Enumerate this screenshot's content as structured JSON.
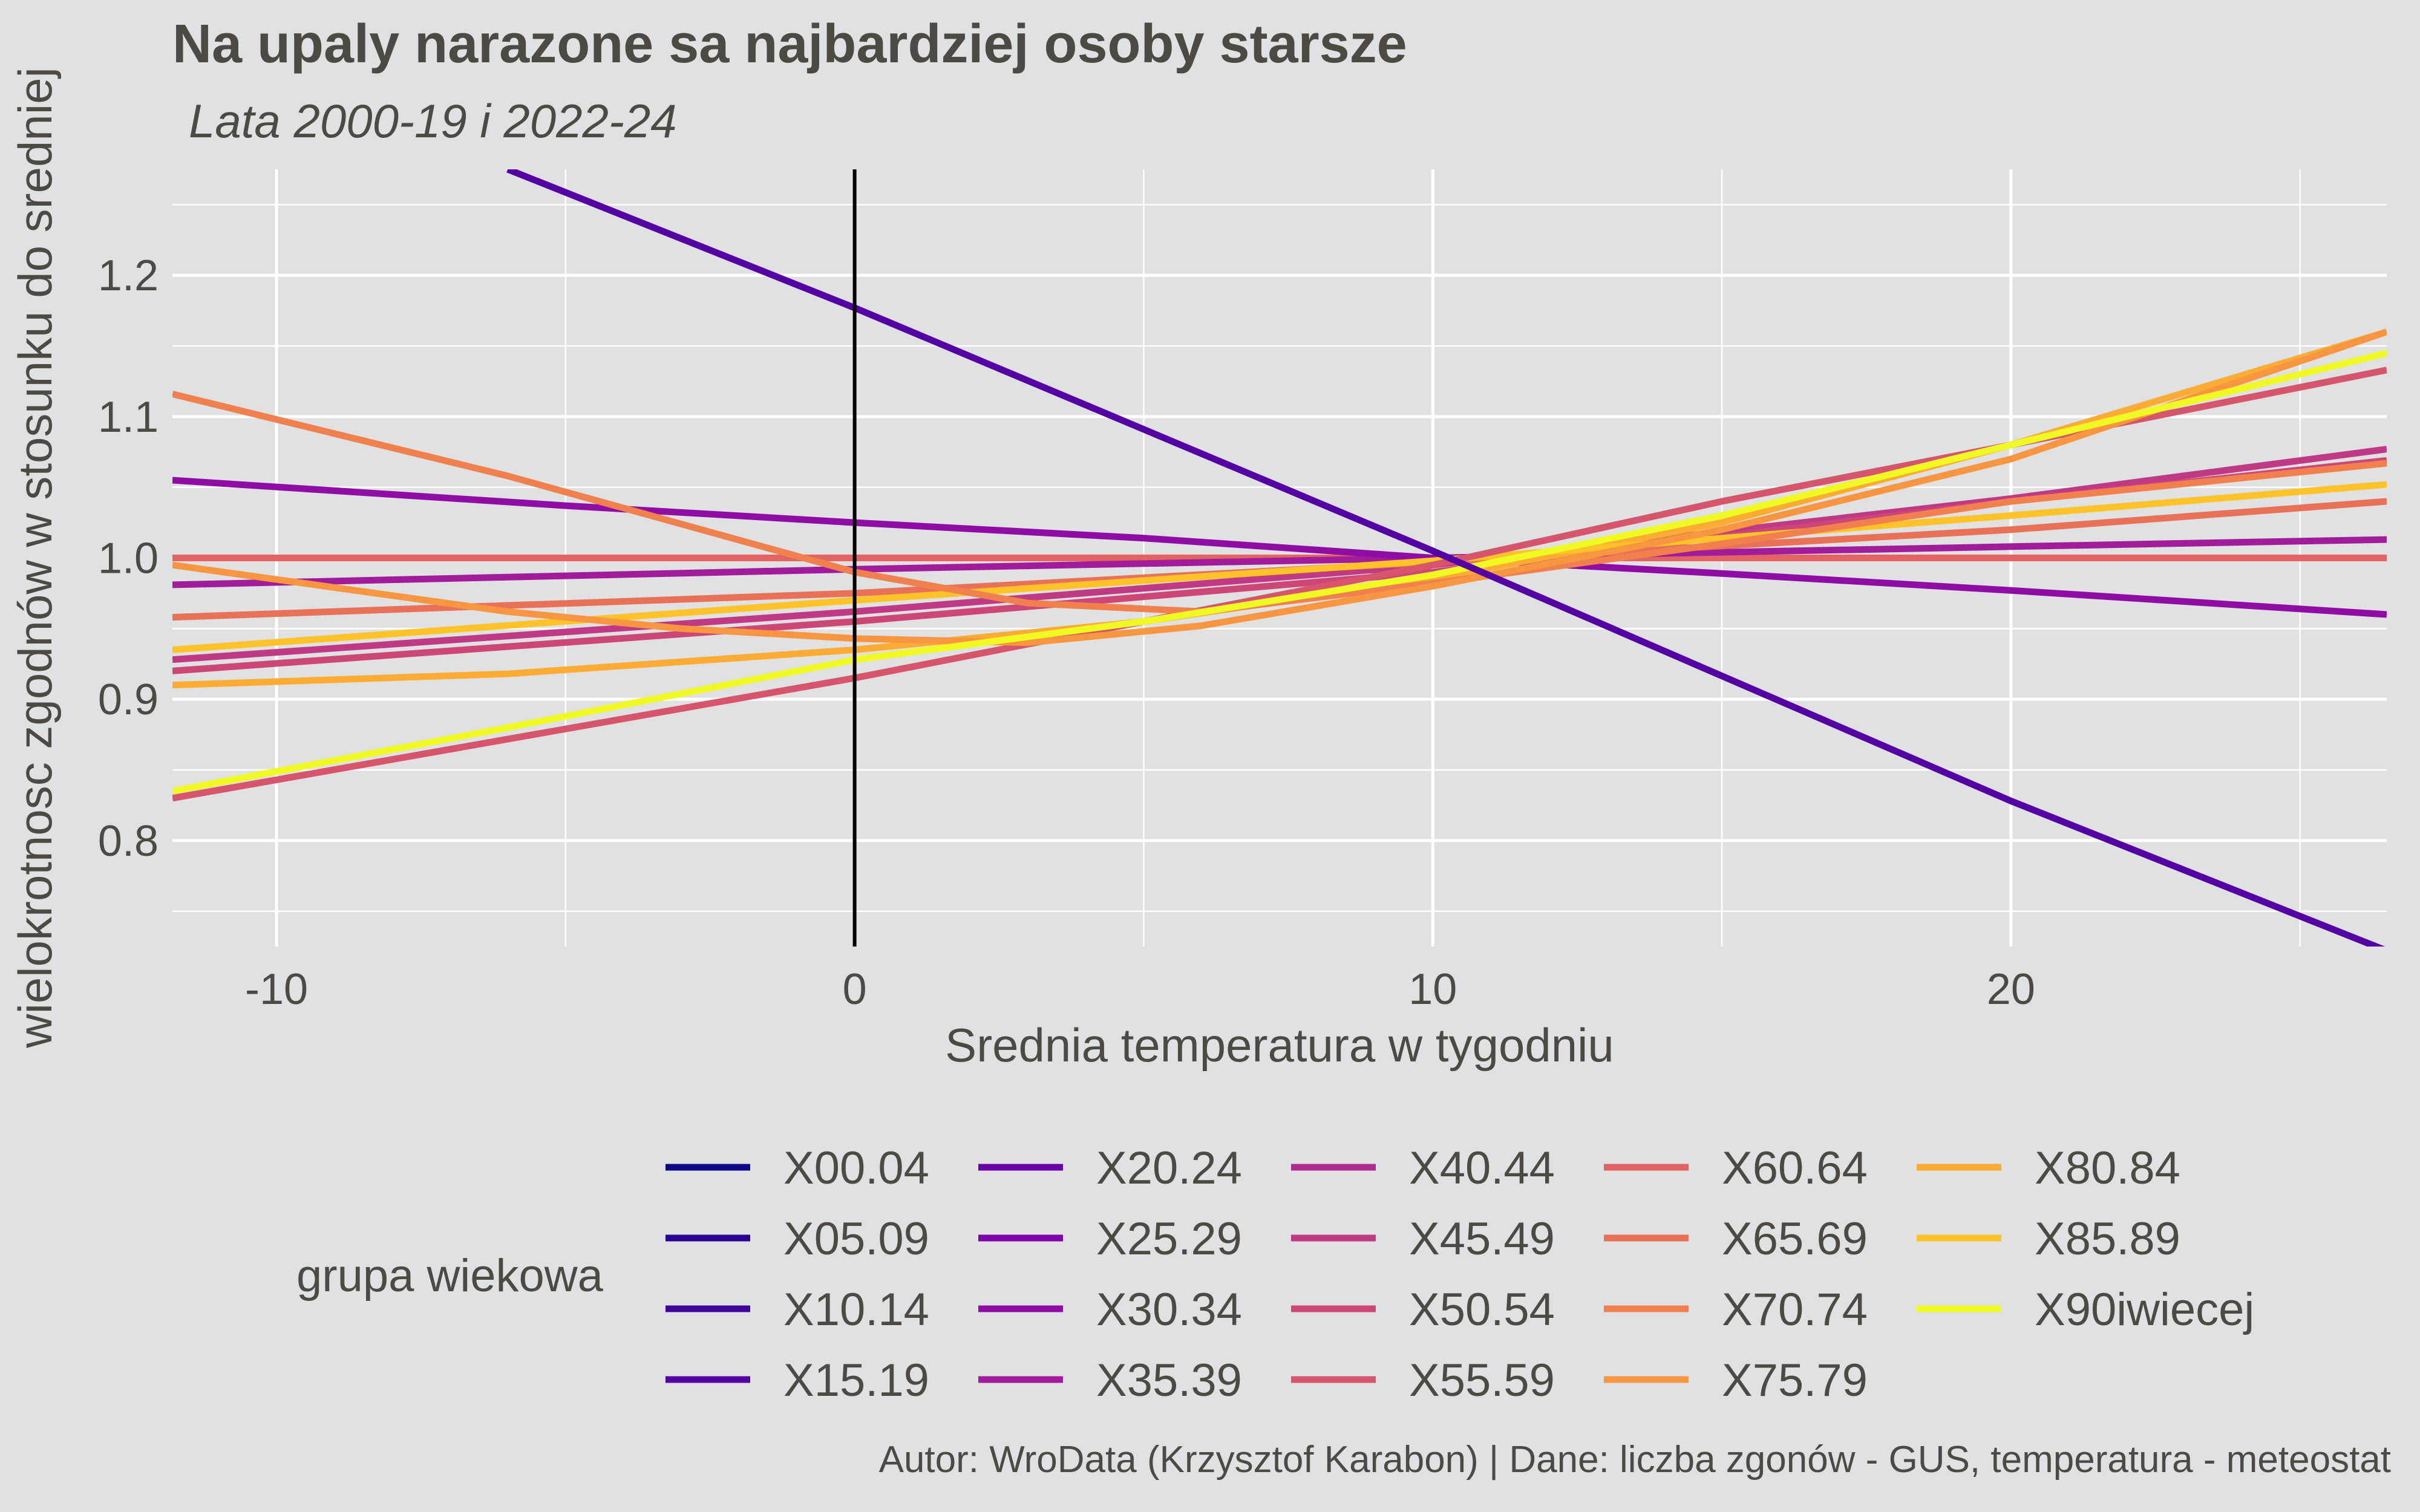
{
  "chart_data": {
    "type": "line",
    "title": "Na upaly narazone sa najbardziej osoby starsze",
    "subtitle": "Lata 2000-19 i 2022-24",
    "xlabel": "Srednia temperatura w tygodniu",
    "ylabel": "wielokrotnosc zgodnów w stosunku do sredniej",
    "xlim": [
      -11.8,
      26.5
    ],
    "ylim": [
      0.725,
      1.275
    ],
    "xticks": [
      -10,
      0,
      10,
      20
    ],
    "xtick_labels": [
      "-10",
      "0",
      "10",
      "20"
    ],
    "yticks": [
      0.8,
      0.9,
      1.0,
      1.1,
      1.2
    ],
    "ytick_labels": [
      "0.8",
      "0.9",
      "1.0",
      "1.1",
      "1.2"
    ],
    "grid": true,
    "reference_line_x": 0,
    "legend_title": "grupa wiekowa",
    "legend_position": "bottom",
    "series": [
      {
        "name": "X00.04",
        "color": "#0d0887",
        "x": [
          -11.8,
          0,
          10,
          20,
          26.5
        ],
        "y": [
          1.0,
          1.0,
          1.0,
          1.0,
          1.0
        ]
      },
      {
        "name": "X05.09",
        "color": "#2d0594",
        "x": [
          -11.8,
          0,
          10,
          20,
          26.5
        ],
        "y": [
          1.0,
          1.0,
          1.0,
          1.0,
          1.0
        ]
      },
      {
        "name": "X10.14",
        "color": "#41049d",
        "x": [
          -11.8,
          0,
          10,
          20,
          26.5
        ],
        "y": [
          1.0,
          1.0,
          1.0,
          1.0,
          1.0
        ]
      },
      {
        "name": "X15.19",
        "color": "#5402a3",
        "x": [
          -6,
          0,
          10,
          20,
          26.5
        ],
        "y": [
          1.275,
          1.177,
          1.005,
          0.828,
          0.722
        ]
      },
      {
        "name": "X20.24",
        "color": "#6a00a8",
        "x": [
          -11.8,
          0,
          10,
          20,
          26.5
        ],
        "y": [
          1.0,
          1.0,
          1.0,
          1.0,
          1.0
        ]
      },
      {
        "name": "X25.29",
        "color": "#7e03a8",
        "x": [
          -11.8,
          0,
          10,
          20,
          26.5
        ],
        "y": [
          1.0,
          1.0,
          1.0,
          1.0,
          1.0
        ]
      },
      {
        "name": "X30.34",
        "color": "#8f0da4",
        "x": [
          -11.8,
          -5,
          0,
          5,
          10,
          15,
          20,
          26.5
        ],
        "y": [
          1.055,
          1.037,
          1.025,
          1.014,
          1.0,
          0.989,
          0.977,
          0.96
        ]
      },
      {
        "name": "X35.39",
        "color": "#a11b9b",
        "x": [
          -11.8,
          0,
          10,
          20,
          26.5
        ],
        "y": [
          0.981,
          0.992,
          1.0,
          1.008,
          1.013
        ]
      },
      {
        "name": "X40.44",
        "color": "#b12a90",
        "x": [
          -11.8,
          0,
          10,
          20,
          26.5
        ],
        "y": [
          1.0,
          1.0,
          1.0,
          1.0,
          1.0
        ]
      },
      {
        "name": "X45.49",
        "color": "#bf3984",
        "x": [
          -11.8,
          0,
          10,
          20,
          26.5
        ],
        "y": [
          0.928,
          0.962,
          0.995,
          1.042,
          1.077
        ]
      },
      {
        "name": "X50.54",
        "color": "#cc4778",
        "x": [
          -11.8,
          0,
          10,
          20,
          26.5
        ],
        "y": [
          0.92,
          0.955,
          0.99,
          1.04,
          1.069
        ]
      },
      {
        "name": "X55.59",
        "color": "#d6556d",
        "x": [
          -11.8,
          0,
          5,
          10,
          15,
          20,
          26.5
        ],
        "y": [
          0.83,
          0.915,
          0.955,
          0.995,
          1.04,
          1.08,
          1.133
        ]
      },
      {
        "name": "X60.64",
        "color": "#e16462",
        "x": [
          -11.8,
          0,
          10,
          20,
          26.5
        ],
        "y": [
          1.0,
          1.0,
          1.0,
          1.0,
          1.0
        ]
      },
      {
        "name": "X65.69",
        "color": "#e97158",
        "x": [
          -11.8,
          0,
          10,
          20,
          26.5
        ],
        "y": [
          0.958,
          0.975,
          0.997,
          1.02,
          1.04
        ]
      },
      {
        "name": "X70.74",
        "color": "#f0804e",
        "x": [
          -11.8,
          -6,
          0,
          3,
          6,
          10,
          15,
          20,
          26.5
        ],
        "y": [
          1.116,
          1.058,
          0.99,
          0.968,
          0.962,
          0.982,
          1.01,
          1.04,
          1.067
        ]
      },
      {
        "name": "X75.79",
        "color": "#f89540",
        "x": [
          -11.8,
          -6,
          -3,
          0,
          3,
          6,
          10,
          15,
          20,
          26.5
        ],
        "y": [
          0.995,
          0.962,
          0.95,
          0.943,
          0.94,
          0.952,
          0.98,
          1.02,
          1.07,
          1.16
        ]
      },
      {
        "name": "X80.84",
        "color": "#fdac33",
        "x": [
          -11.8,
          -6,
          0,
          5,
          10,
          15,
          20,
          26.5
        ],
        "y": [
          0.91,
          0.918,
          0.935,
          0.955,
          0.985,
          1.025,
          1.08,
          1.16
        ]
      },
      {
        "name": "X85.89",
        "color": "#fdc328",
        "x": [
          -11.8,
          0,
          10,
          20,
          26.5
        ],
        "y": [
          0.935,
          0.97,
          0.998,
          1.03,
          1.052
        ]
      },
      {
        "name": "X90iwiecej",
        "color": "#f0f921",
        "x": [
          -11.8,
          -6,
          0,
          5,
          10,
          15,
          20,
          26.5
        ],
        "y": [
          0.835,
          0.88,
          0.928,
          0.955,
          0.988,
          1.03,
          1.08,
          1.145
        ]
      }
    ],
    "draw_order": [
      0,
      1,
      2,
      4,
      5,
      8,
      12,
      7,
      6,
      9,
      10,
      13,
      16,
      17,
      11,
      14,
      15,
      18,
      3
    ]
  },
  "caption": "Autor: WroData (Krzysztof Karabon) | Dane: liczba zgonów - GUS, temperatura - meteostat"
}
